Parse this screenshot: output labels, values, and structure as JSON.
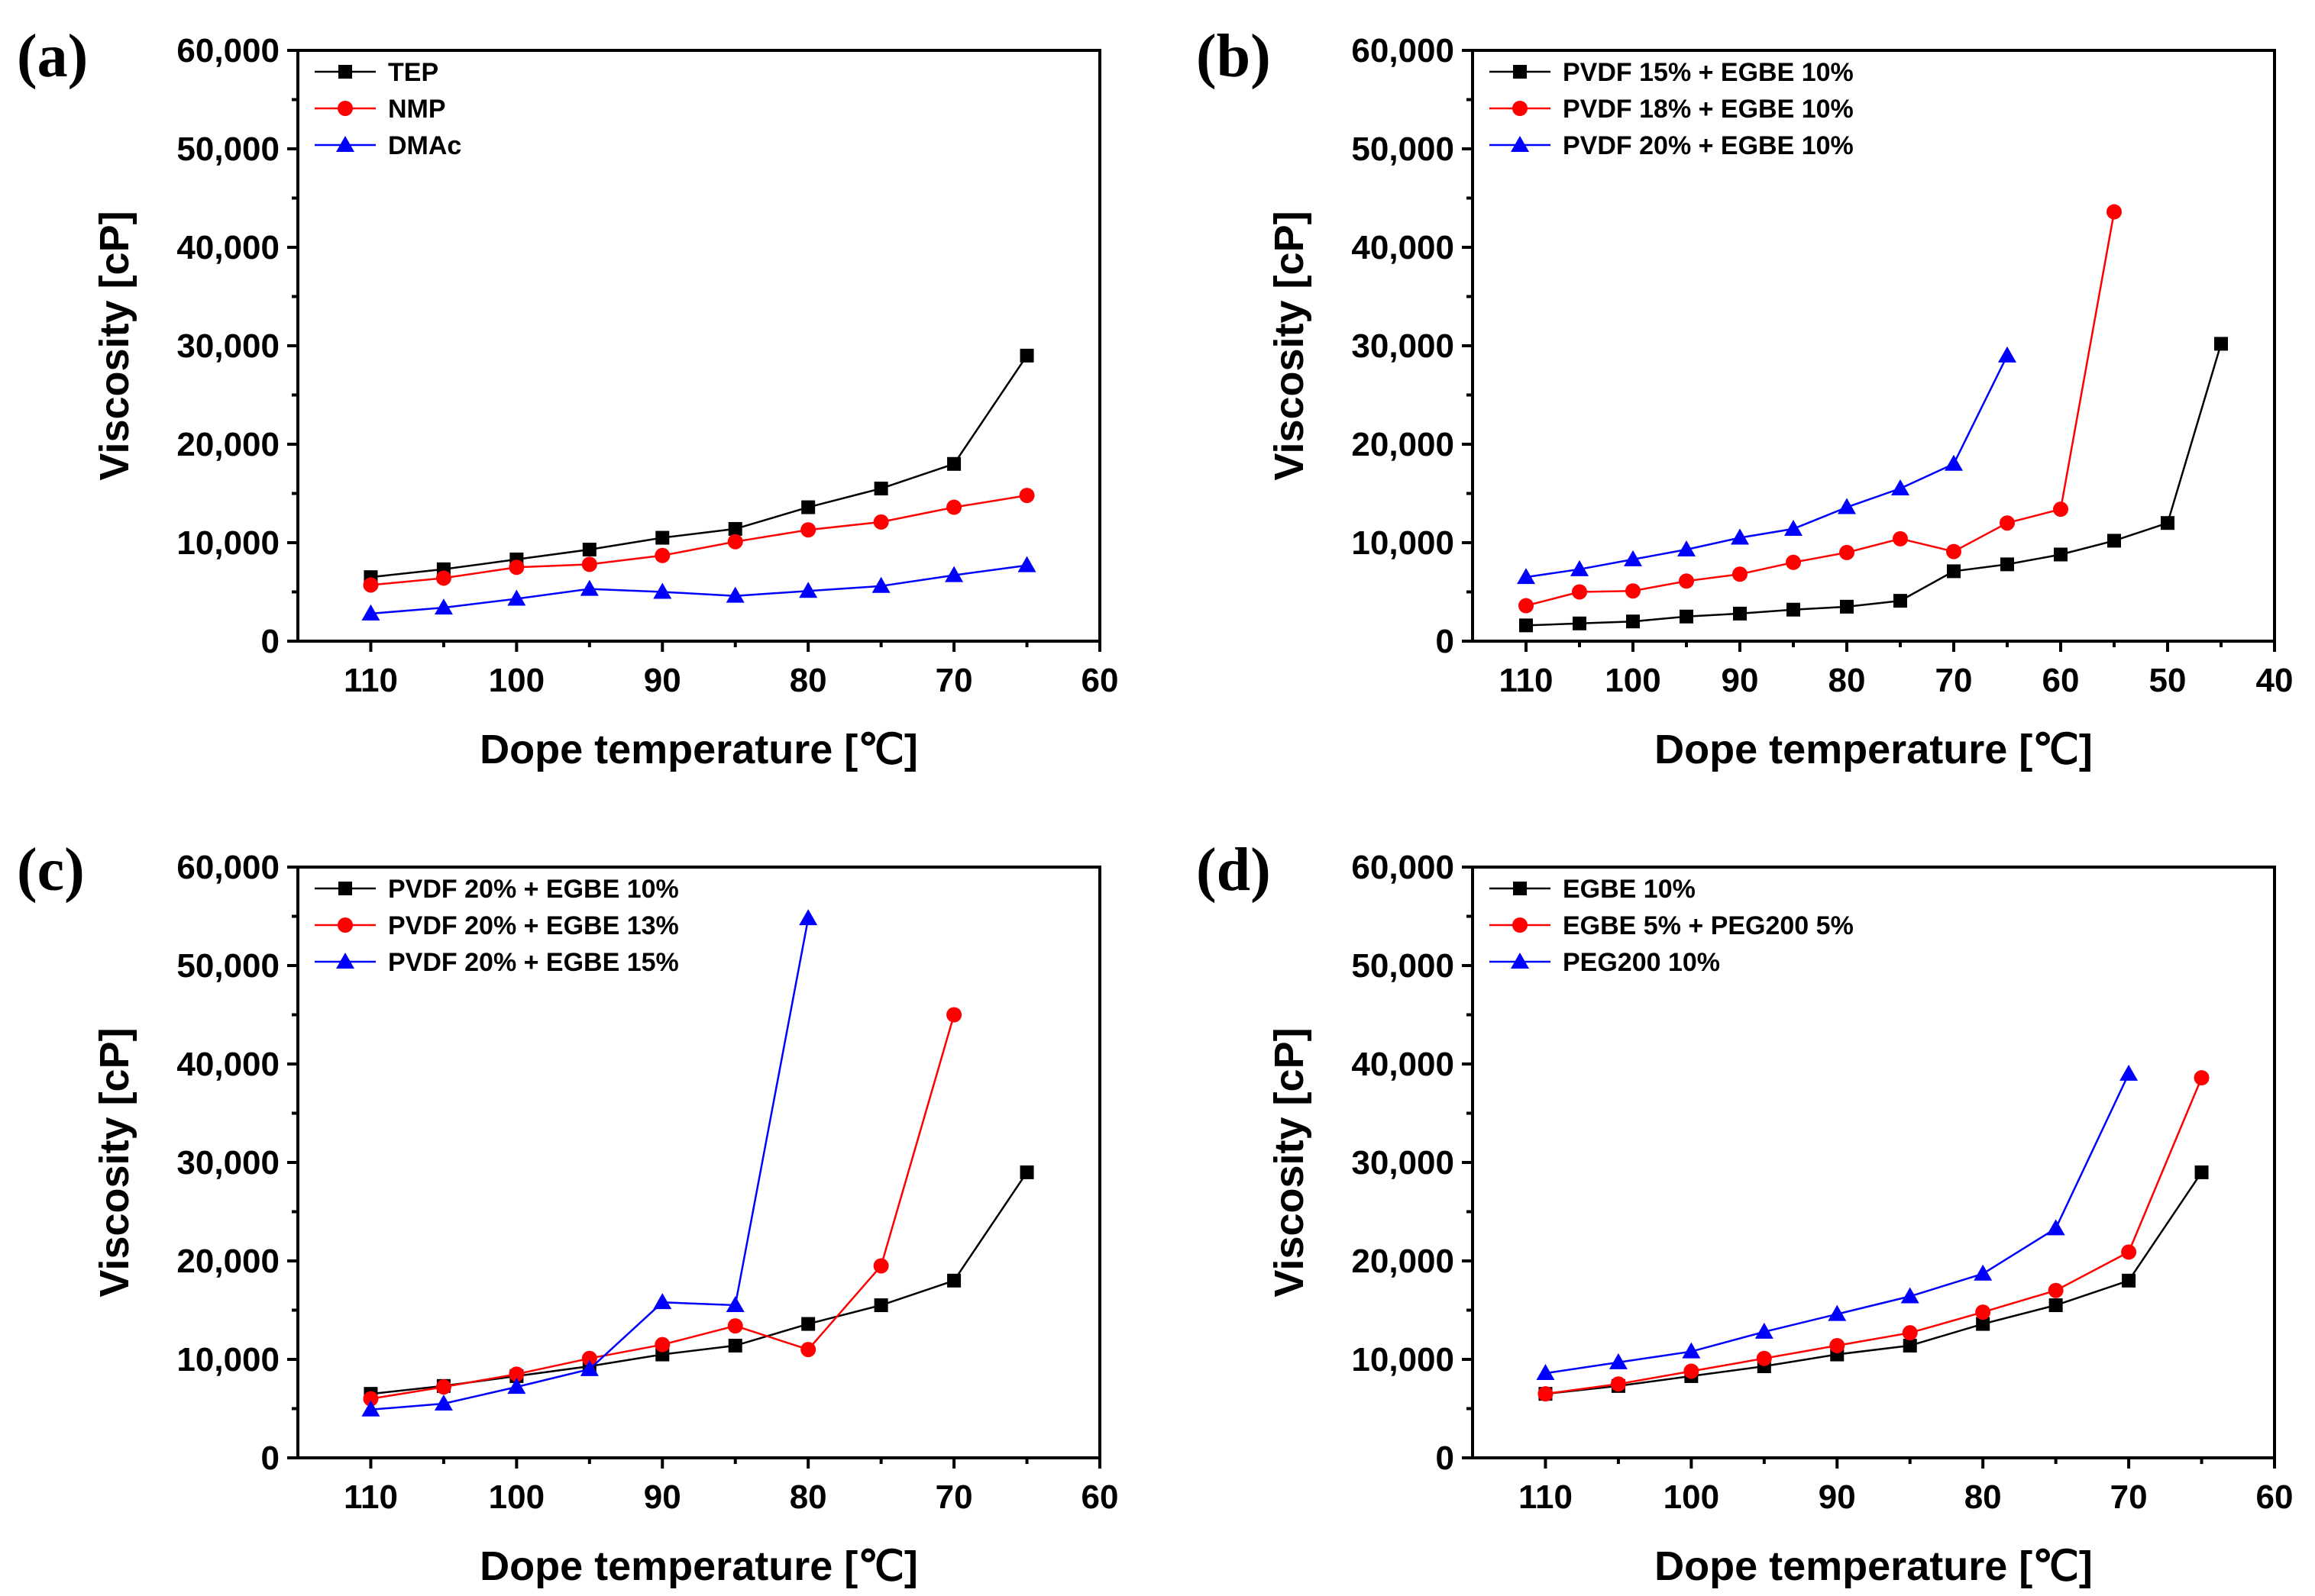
{
  "chart_data": [
    {
      "type": "line",
      "panel": "(a)",
      "xlabel": "Dope temperature [℃]",
      "ylabel": "Viscosity [cP]",
      "xlim": [
        115,
        60
      ],
      "ylim": [
        0,
        60000
      ],
      "xticks": [
        110,
        100,
        90,
        80,
        70,
        60
      ],
      "yticks": [
        0,
        10000,
        20000,
        30000,
        40000,
        50000,
        60000
      ],
      "ytick_labels": [
        "0",
        "10,000",
        "20,000",
        "30,000",
        "40,000",
        "50,000",
        "60,000"
      ],
      "legend_position": "top-left",
      "grid": false,
      "series": [
        {
          "name": "TEP",
          "color": "#000000",
          "marker": "square",
          "x": [
            110,
            105,
            100,
            95,
            90,
            85,
            80,
            75,
            70,
            65
          ],
          "y": [
            6500,
            7300,
            8300,
            9300,
            10500,
            11400,
            13600,
            15500,
            18000,
            29000
          ]
        },
        {
          "name": "NMP",
          "color": "#ff0000",
          "marker": "circle",
          "x": [
            110,
            105,
            100,
            95,
            90,
            85,
            80,
            75,
            70,
            65
          ],
          "y": [
            5700,
            6400,
            7500,
            7800,
            8700,
            10100,
            11300,
            12100,
            13600,
            14800
          ]
        },
        {
          "name": "DMAc",
          "color": "#0000ff",
          "marker": "triangle",
          "x": [
            110,
            105,
            100,
            95,
            90,
            85,
            80,
            75,
            70,
            65
          ],
          "y": [
            2800,
            3400,
            4300,
            5300,
            5000,
            4600,
            5100,
            5600,
            6700,
            7700
          ]
        }
      ]
    },
    {
      "type": "line",
      "panel": "(b)",
      "xlabel": "Dope temperature [℃]",
      "ylabel": "Viscosity [cP]",
      "xlim": [
        115,
        40
      ],
      "ylim": [
        0,
        60000
      ],
      "xticks": [
        110,
        100,
        90,
        80,
        70,
        60,
        50,
        40
      ],
      "yticks": [
        0,
        10000,
        20000,
        30000,
        40000,
        50000,
        60000
      ],
      "ytick_labels": [
        "0",
        "10,000",
        "20,000",
        "30,000",
        "40,000",
        "50,000",
        "60,000"
      ],
      "legend_position": "top-left",
      "grid": false,
      "series": [
        {
          "name": "PVDF 15% + EGBE 10%",
          "color": "#000000",
          "marker": "square",
          "x": [
            110,
            105,
            100,
            95,
            90,
            85,
            80,
            75,
            70,
            65,
            60,
            55,
            50,
            45
          ],
          "y": [
            1600,
            1800,
            2000,
            2500,
            2800,
            3200,
            3500,
            4100,
            7100,
            7800,
            8800,
            10200,
            12000,
            30200
          ]
        },
        {
          "name": "PVDF 18% + EGBE 10%",
          "color": "#ff0000",
          "marker": "circle",
          "x": [
            110,
            105,
            100,
            95,
            90,
            85,
            80,
            75,
            70,
            65,
            60,
            55
          ],
          "y": [
            3600,
            5000,
            5100,
            6100,
            6800,
            8000,
            9000,
            10400,
            9100,
            12000,
            13400,
            43600
          ]
        },
        {
          "name": "PVDF 20% + EGBE 10%",
          "color": "#0000ff",
          "marker": "triangle",
          "x": [
            110,
            105,
            100,
            95,
            90,
            85,
            80,
            75,
            70,
            65
          ],
          "y": [
            6500,
            7300,
            8300,
            9300,
            10500,
            11400,
            13600,
            15500,
            18000,
            29000
          ]
        }
      ]
    },
    {
      "type": "line",
      "panel": "(c)",
      "xlabel": "Dope temperature [℃]",
      "ylabel": "Viscosity [cP]",
      "xlim": [
        115,
        60
      ],
      "ylim": [
        0,
        60000
      ],
      "xticks": [
        110,
        100,
        90,
        80,
        70,
        60
      ],
      "yticks": [
        0,
        10000,
        20000,
        30000,
        40000,
        50000,
        60000
      ],
      "ytick_labels": [
        "0",
        "10,000",
        "20,000",
        "30,000",
        "40,000",
        "50,000",
        "60,000"
      ],
      "legend_position": "top-left",
      "grid": false,
      "series": [
        {
          "name": "PVDF 20% + EGBE 10%",
          "color": "#000000",
          "marker": "square",
          "x": [
            110,
            105,
            100,
            95,
            90,
            85,
            80,
            75,
            70,
            65
          ],
          "y": [
            6500,
            7300,
            8300,
            9300,
            10500,
            11400,
            13600,
            15500,
            18000,
            29000
          ]
        },
        {
          "name": "PVDF 20% + EGBE 13%",
          "color": "#ff0000",
          "marker": "circle",
          "x": [
            110,
            105,
            100,
            95,
            90,
            85,
            80,
            75,
            70
          ],
          "y": [
            6000,
            7200,
            8500,
            10100,
            11500,
            13400,
            11000,
            19500,
            45000
          ]
        },
        {
          "name": "PVDF 20% + EGBE 15%",
          "color": "#0000ff",
          "marker": "triangle",
          "x": [
            110,
            105,
            100,
            95,
            90,
            85,
            80
          ],
          "y": [
            4900,
            5500,
            7200,
            9000,
            15800,
            15500,
            54800
          ]
        }
      ]
    },
    {
      "type": "line",
      "panel": "(d)",
      "xlabel": "Dope temperature [℃]",
      "ylabel": "Viscosity [cP]",
      "xlim": [
        115,
        60
      ],
      "ylim": [
        0,
        60000
      ],
      "xticks": [
        110,
        100,
        90,
        80,
        70,
        60
      ],
      "yticks": [
        0,
        10000,
        20000,
        30000,
        40000,
        50000,
        60000
      ],
      "ytick_labels": [
        "0",
        "10,000",
        "20,000",
        "30,000",
        "40,000",
        "50,000",
        "60,000"
      ],
      "legend_position": "top-left",
      "grid": false,
      "series": [
        {
          "name": "EGBE 10%",
          "color": "#000000",
          "marker": "square",
          "x": [
            110,
            105,
            100,
            95,
            90,
            85,
            80,
            75,
            70,
            65
          ],
          "y": [
            6500,
            7300,
            8300,
            9300,
            10500,
            11400,
            13600,
            15500,
            18000,
            29000
          ]
        },
        {
          "name": "EGBE 5% + PEG200 5%",
          "color": "#ff0000",
          "marker": "circle",
          "x": [
            110,
            105,
            100,
            95,
            90,
            85,
            80,
            75,
            70,
            65
          ],
          "y": [
            6500,
            7500,
            8800,
            10100,
            11400,
            12700,
            14800,
            17000,
            20900,
            38600
          ]
        },
        {
          "name": "PEG200 10%",
          "color": "#0000ff",
          "marker": "triangle",
          "x": [
            110,
            105,
            100,
            95,
            90,
            85,
            80,
            75,
            70
          ],
          "y": [
            8600,
            9700,
            10800,
            12800,
            14600,
            16400,
            18700,
            23300,
            39000
          ]
        }
      ]
    }
  ]
}
